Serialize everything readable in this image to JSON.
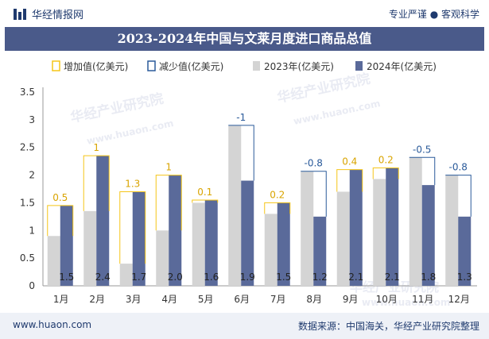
{
  "header": {
    "brand": "华经情报网",
    "tagline": "专业严谨 ● 客观科学"
  },
  "footer": {
    "website": "www.huaon.com",
    "source": "数据来源：中国海关，华经产业研究院整理"
  },
  "watermarks": [
    "华经产业研究院",
    "www.huaon.com"
  ],
  "colors": {
    "bar2023": "#d4d4d4",
    "bar2024": "#5a6a9a",
    "increase": "#f5c518",
    "decrease": "#2a5a9a",
    "title_bg": "#4a5a8a"
  },
  "chart_data": {
    "type": "bar",
    "title": "2023-2024年中国与文莱月度进口商品总值",
    "categories": [
      "1月",
      "2月",
      "3月",
      "4月",
      "5月",
      "6月",
      "7月",
      "8月",
      "9月",
      "10月",
      "11月",
      "12月"
    ],
    "series": [
      {
        "name": "2023年(亿美元)",
        "values": [
          0.9,
          1.35,
          0.4,
          1.0,
          1.5,
          2.9,
          1.3,
          2.07,
          1.7,
          1.93,
          2.32,
          2.0
        ]
      },
      {
        "name": "2024年(亿美元)",
        "values": [
          1.45,
          2.35,
          1.7,
          2.0,
          1.55,
          1.9,
          1.5,
          1.25,
          2.1,
          2.13,
          1.82,
          1.25
        ]
      }
    ],
    "bar_labels": [
      "1.5",
      "2.4",
      "1.7",
      "2.0",
      "1.6",
      "1.9",
      "1.5",
      "1.2",
      "2.1",
      "2.1",
      "1.8",
      "1.3"
    ],
    "change_labels": [
      "0.5",
      "1",
      "1.3",
      "1",
      "0.1",
      "-1",
      "0.2",
      "-0.8",
      "0.4",
      "0.2",
      "-0.5",
      "-0.8"
    ],
    "legend": [
      "增加值(亿美元)",
      "减少值(亿美元)",
      "2023年(亿美元)",
      "2024年(亿美元)"
    ],
    "legend_position": "top",
    "ylim": [
      0,
      3.5
    ],
    "yticks": [
      "0",
      "0.5",
      "1",
      "1.5",
      "2",
      "2.5",
      "3",
      "3.5"
    ],
    "grid": false
  }
}
